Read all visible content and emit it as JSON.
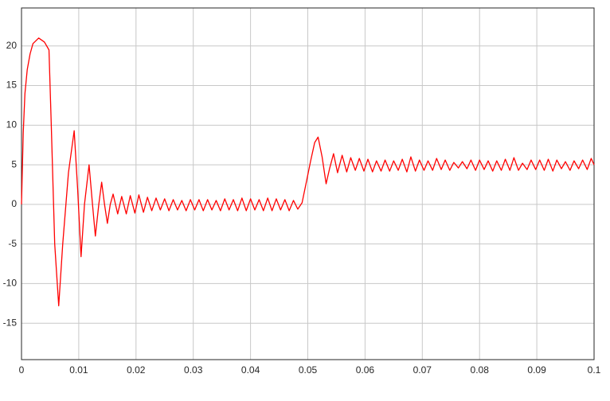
{
  "chart_data": {
    "type": "line",
    "x": [
      0,
      0.0003,
      0.0006,
      0.001,
      0.0015,
      0.002,
      0.003,
      0.004,
      0.0048,
      0.0052,
      0.0058,
      0.0065,
      0.0072,
      0.0082,
      0.0092,
      0.0098,
      0.0104,
      0.011,
      0.0118,
      0.0124,
      0.0129,
      0.0135,
      0.014,
      0.0145,
      0.015,
      0.0155,
      0.016,
      0.0168,
      0.0175,
      0.0183,
      0.019,
      0.0198,
      0.0205,
      0.0213,
      0.022,
      0.02275,
      0.0235,
      0.02425,
      0.025,
      0.02575,
      0.0265,
      0.02725,
      0.028,
      0.02875,
      0.0295,
      0.03025,
      0.031,
      0.03175,
      0.0325,
      0.03325,
      0.034,
      0.03475,
      0.0355,
      0.03625,
      0.037,
      0.03775,
      0.0385,
      0.03925,
      0.04,
      0.04075,
      0.0415,
      0.04225,
      0.043,
      0.04375,
      0.0445,
      0.04525,
      0.046,
      0.04675,
      0.0475,
      0.04825,
      0.049,
      0.0498,
      0.0505,
      0.0512,
      0.0518,
      0.0525,
      0.0532,
      0.0538,
      0.0545,
      0.0552,
      0.056,
      0.0568,
      0.0575,
      0.0583,
      0.059,
      0.0598,
      0.0605,
      0.0613,
      0.062,
      0.0628,
      0.0635,
      0.0643,
      0.065,
      0.0658,
      0.0665,
      0.0673,
      0.068,
      0.0688,
      0.0695,
      0.0703,
      0.071,
      0.0718,
      0.0725,
      0.0733,
      0.074,
      0.0748,
      0.0755,
      0.0763,
      0.077,
      0.0778,
      0.0785,
      0.0793,
      0.08,
      0.0808,
      0.0815,
      0.0823,
      0.083,
      0.0838,
      0.0845,
      0.0853,
      0.086,
      0.0868,
      0.0875,
      0.0883,
      0.089,
      0.0898,
      0.0905,
      0.0913,
      0.092,
      0.0928,
      0.0935,
      0.0943,
      0.095,
      0.0958,
      0.0965,
      0.0973,
      0.098,
      0.0988,
      0.0995,
      0.1
    ],
    "series": [
      {
        "color": "#ff0000",
        "values": [
          0,
          9,
          14,
          17,
          19,
          20.3,
          21,
          20.5,
          19.5,
          10,
          -5,
          -12.8,
          -5,
          4,
          9.3,
          2,
          -6.6,
          0,
          5,
          0,
          -4,
          0,
          2.8,
          0,
          -2.4,
          0,
          1.3,
          -1.2,
          1,
          -1.2,
          1.1,
          -1.1,
          1.2,
          -1,
          0.9,
          -0.8,
          0.8,
          -0.7,
          0.7,
          -0.8,
          0.6,
          -0.7,
          0.5,
          -0.8,
          0.6,
          -0.7,
          0.6,
          -0.8,
          0.6,
          -0.7,
          0.5,
          -0.8,
          0.7,
          -0.7,
          0.6,
          -0.8,
          0.8,
          -0.8,
          0.7,
          -0.7,
          0.6,
          -0.8,
          0.8,
          -0.8,
          0.7,
          -0.7,
          0.6,
          -0.8,
          0.5,
          -0.6,
          0.2,
          3,
          5.5,
          7.8,
          8.5,
          6,
          2.6,
          4.5,
          6.4,
          4,
          6.2,
          4.1,
          5.9,
          4.3,
          5.8,
          4.2,
          5.7,
          4.1,
          5.5,
          4.2,
          5.6,
          4.2,
          5.5,
          4.3,
          5.7,
          4.1,
          6,
          4.2,
          5.6,
          4.3,
          5.5,
          4.3,
          5.8,
          4.4,
          5.6,
          4.3,
          5.3,
          4.6,
          5.4,
          4.5,
          5.6,
          4.3,
          5.6,
          4.4,
          5.5,
          4.2,
          5.5,
          4.3,
          5.7,
          4.3,
          5.9,
          4.3,
          5.2,
          4.4,
          5.6,
          4.4,
          5.6,
          4.3,
          5.7,
          4.2,
          5.6,
          4.5,
          5.4,
          4.3,
          5.5,
          4.5,
          5.6,
          4.4,
          5.8,
          5
        ]
      }
    ],
    "xlim": [
      0,
      0.1
    ],
    "xticks": [
      0,
      0.01,
      0.02,
      0.03,
      0.04,
      0.05,
      0.06,
      0.07,
      0.08,
      0.09,
      0.1
    ],
    "ylim": [
      -19.6,
      24.8
    ],
    "yticks": [
      -15,
      -10,
      -5,
      0,
      5,
      10,
      15,
      20
    ],
    "grid": true
  }
}
